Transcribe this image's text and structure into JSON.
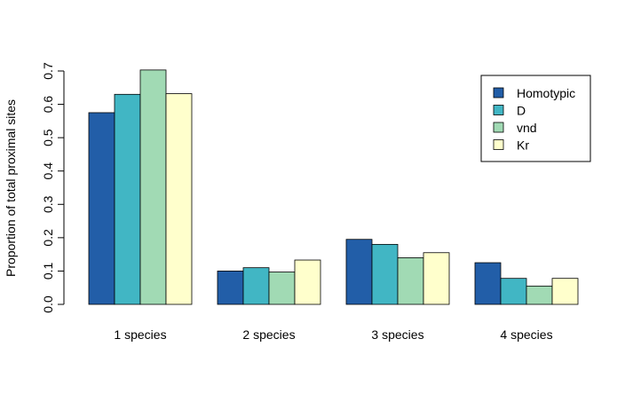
{
  "chart_data": {
    "type": "bar",
    "title": "",
    "xlabel": "",
    "ylabel": "Proportion of total proximal sites",
    "ylim": [
      0,
      0.7
    ],
    "yticks": [
      "0.0",
      "0.1",
      "0.2",
      "0.3",
      "0.4",
      "0.5",
      "0.6",
      "0.7"
    ],
    "categories": [
      "1 species",
      "2 species",
      "3 species",
      "4 species"
    ],
    "series": [
      {
        "name": "Homotypic",
        "color": "#225EA8",
        "values": [
          0.575,
          0.1,
          0.195,
          0.125
        ]
      },
      {
        "name": "D",
        "color": "#41B6C4",
        "values": [
          0.63,
          0.11,
          0.18,
          0.078
        ]
      },
      {
        "name": "vnd",
        "color": "#A1DAB4",
        "values": [
          0.703,
          0.097,
          0.14,
          0.055
        ]
      },
      {
        "name": "Kr",
        "color": "#FFFFCC",
        "values": [
          0.632,
          0.133,
          0.155,
          0.078
        ]
      }
    ],
    "legend_position": "top-right",
    "grid": false
  }
}
